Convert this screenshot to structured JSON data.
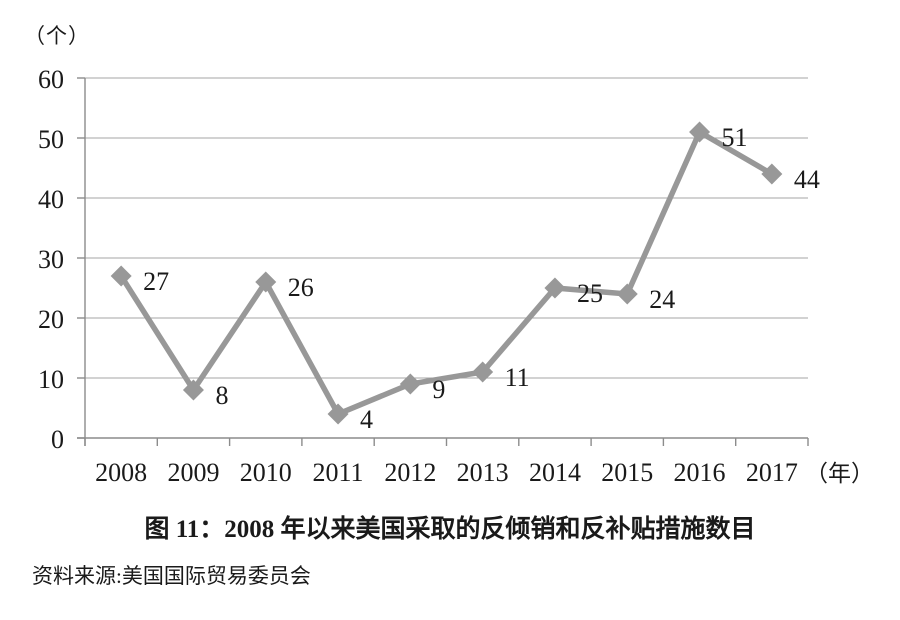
{
  "chart_data": {
    "type": "line",
    "title": "图 11：2008 年以来美国采取的反倾销和反补贴措施数目",
    "source": "资料来源:美国国际贸易委员会",
    "ylabel": "（个）",
    "xlabel": "（年）",
    "categories": [
      "2008",
      "2009",
      "2010",
      "2011",
      "2012",
      "2013",
      "2014",
      "2015",
      "2016",
      "2017"
    ],
    "values": [
      27,
      8,
      26,
      4,
      9,
      11,
      25,
      24,
      51,
      44
    ],
    "ylim": [
      0,
      60
    ],
    "yticks": [
      0,
      10,
      20,
      30,
      40,
      50,
      60
    ],
    "grid": true,
    "legend": "none",
    "marker": "diamond",
    "data_labels_shown": true,
    "colors": {
      "line": "#989898",
      "marker": "#989898",
      "grid": "#a6a6a6",
      "axis": "#8c8c8c",
      "text": "#1a1a1a"
    }
  }
}
